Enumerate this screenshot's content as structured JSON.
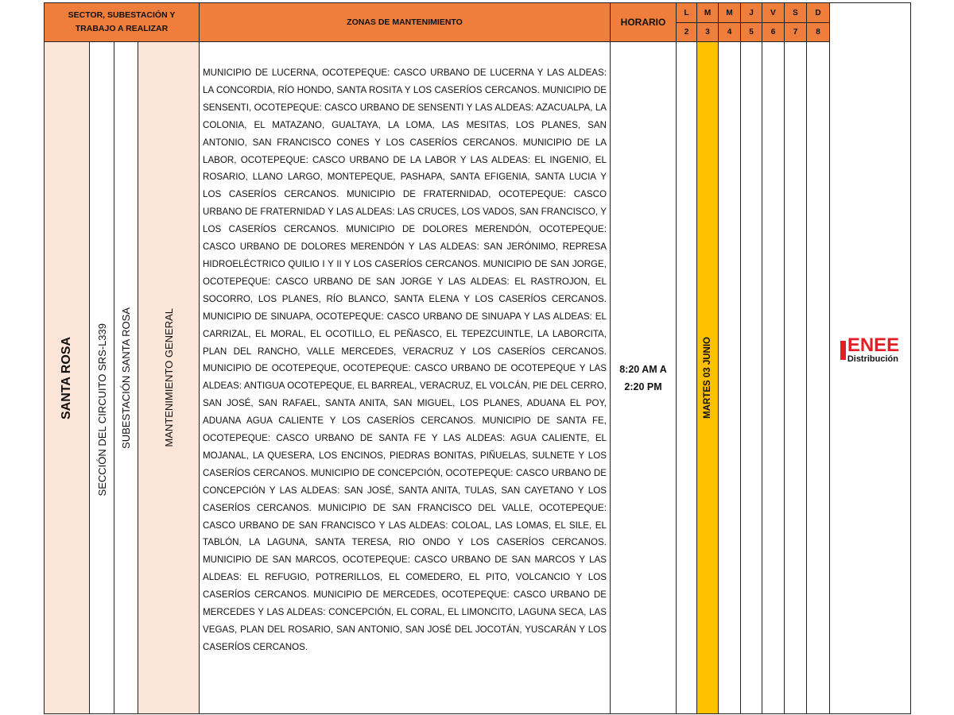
{
  "header": {
    "sector": "SECTOR, SUBESTACIÓN Y TRABAJO A REALIZAR",
    "zones": "ZONAS DE MANTENIMIENTO",
    "schedule": "HORARIO",
    "days": [
      {
        "letter": "L",
        "number": "2"
      },
      {
        "letter": "M",
        "number": "3"
      },
      {
        "letter": "M",
        "number": "4"
      },
      {
        "letter": "J",
        "number": "5"
      },
      {
        "letter": "V",
        "number": "6"
      },
      {
        "letter": "S",
        "number": "7"
      },
      {
        "letter": "D",
        "number": "8"
      }
    ]
  },
  "row": {
    "sector": "SANTA ROSA",
    "circuit": "SECCIÓN DEL CIRCUITO SRS-L339",
    "substation": "SUBESTACIÓN SANTA ROSA",
    "work": "MANTENIMIENTO GENERAL",
    "zones": "MUNICIPIO DE LUCERNA, OCOTEPEQUE: CASCO URBANO DE LUCERNA Y LAS ALDEAS: LA CONCORDIA, RÍO HONDO, SANTA ROSITA Y LOS CASERÍOS CERCANOS. MUNICIPIO DE SENSENTI, OCOTEPEQUE: CASCO URBANO DE SENSENTI Y LAS ALDEAS: AZACUALPA, LA COLONIA, EL MATAZANO, GUALTAYA, LA LOMA, LAS MESITAS, LOS PLANES, SAN ANTONIO, SAN FRANCISCO CONES Y LOS CASERÍOS CERCANOS. MUNICIPIO DE LA LABOR, OCOTEPEQUE: CASCO URBANO DE LA LABOR Y LAS ALDEAS: EL INGENIO, EL ROSARIO, LLANO LARGO, MONTEPEQUE, PASHAPA, SANTA EFIGENIA, SANTA LUCIA Y LOS CASERÍOS CERCANOS. MUNICIPIO DE FRATERNIDAD, OCOTEPEQUE: CASCO URBANO DE FRATERNIDAD Y LAS ALDEAS: LAS CRUCES, LOS VADOS, SAN FRANCISCO, Y LOS CASERÍOS CERCANOS. MUNICIPIO DE DOLORES MERENDÓN, OCOTEPEQUE: CASCO URBANO DE DOLORES MERENDÓN Y LAS ALDEAS: SAN JERÓNIMO, REPRESA HIDROELÉCTRICO QUILIO I Y II Y LOS CASERÍOS CERCANOS. MUNICIPIO DE SAN JORGE, OCOTEPEQUE: CASCO URBANO DE SAN JORGE Y LAS ALDEAS: EL RASTROJON, EL SOCORRO, LOS PLANES, RÍO BLANCO, SANTA ELENA Y LOS CASERÍOS CERCANOS. MUNICIPIO DE SINUAPA, OCOTEPEQUE: CASCO URBANO DE SINUAPA Y LAS ALDEAS: EL CARRIZAL, EL MORAL, EL OCOTILLO, EL PEÑASCO, EL TEPEZCUINTLE, LA LABORCITA, PLAN DEL RANCHO, VALLE MERCEDES, VERACRUZ Y LOS CASERÍOS CERCANOS. MUNICIPIO DE OCOTEPEQUE, OCOTEPEQUE: CASCO URBANO DE OCOTEPEQUE Y LAS ALDEAS: ANTIGUA OCOTEPEQUE, EL BARREAL, VERACRUZ, EL VOLCÁN, PIE DEL CERRO, SAN JOSÉ, SAN RAFAEL, SANTA ANITA, SAN MIGUEL, LOS PLANES, ADUANA EL POY, ADUANA AGUA CALIENTE Y LOS CASERÍOS CERCANOS. MUNICIPIO DE SANTA FE, OCOTEPEQUE: CASCO URBANO DE SANTA FE Y LAS ALDEAS: AGUA CALIENTE, EL MOJANAL, LA QUESERA, LOS ENCINOS, PIEDRAS BONITAS, PIÑUELAS, SULNETE Y LOS CASERÍOS CERCANOS. MUNICIPIO DE CONCEPCIÓN, OCOTEPEQUE: CASCO URBANO DE CONCEPCIÓN Y LAS ALDEAS: SAN JOSÉ, SANTA ANITA, TULAS, SAN CAYETANO Y LOS CASERÍOS CERCANOS. MUNICIPIO DE SAN FRANCISCO DEL VALLE, OCOTEPEQUE: CASCO URBANO DE SAN FRANCISCO Y LAS ALDEAS: COLOAL, LAS LOMAS, EL SILE, EL TABLÓN, LA LAGUNA, SANTA TERESA, RIO ONDO Y LOS CASERÍOS CERCANOS. MUNICIPIO DE SAN MARCOS, OCOTEPEQUE: CASCO URBANO DE SAN MARCOS Y LAS ALDEAS: EL REFUGIO, POTRERILLOS, EL COMEDERO, EL PITO, VOLCANCIO Y LOS CASERÍOS CERCANOS. MUNICIPIO DE MERCEDES, OCOTEPEQUE: CASCO URBANO DE MERCEDES Y LAS ALDEAS: CONCEPCIÓN, EL CORAL, EL LIMONCITO, LAGUNA SECA, LAS VEGAS, PLAN DEL ROSARIO, SAN ANTONIO, SAN JOSÉ DEL JOCOTÁN, YUSCARÁN Y LOS CASERÍOS CERCANOS.",
    "schedule": "8:20 AM A 2:20 PM",
    "date": "MARTES 03 JUNIO"
  },
  "logo": {
    "name": "ENEE",
    "subtitle": "Distribución"
  }
}
